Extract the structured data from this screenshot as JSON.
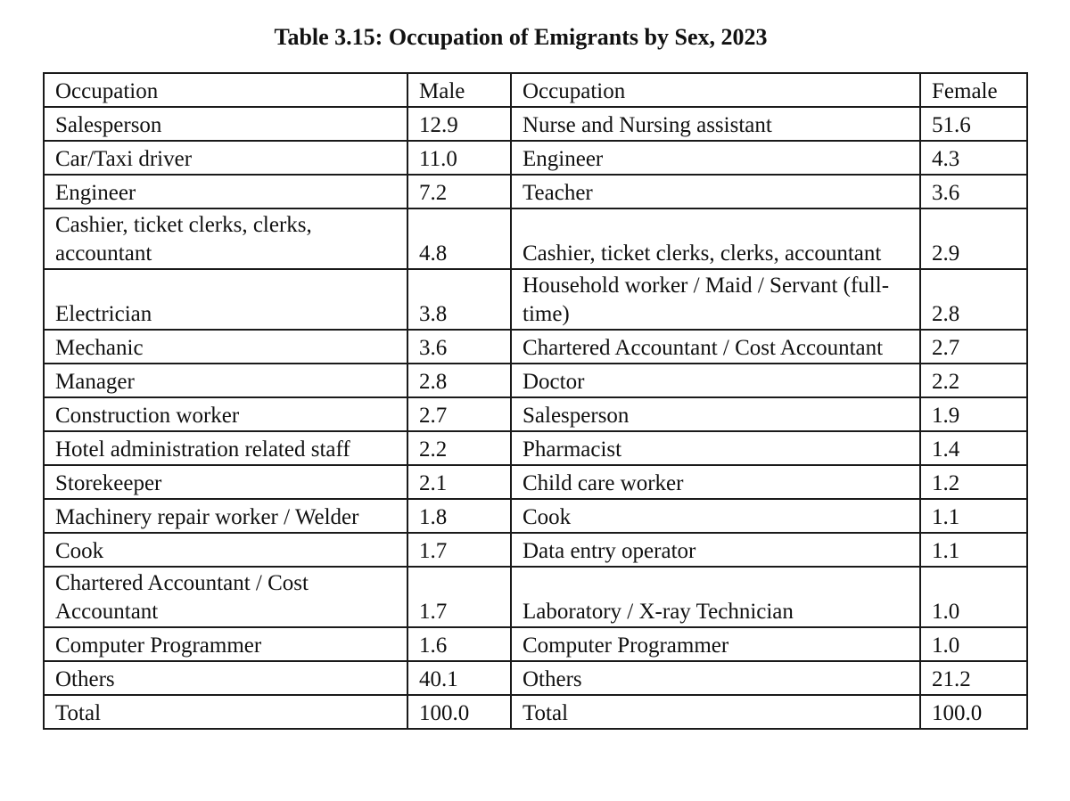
{
  "title": "Table 3.15: Occupation of Emigrants by Sex, 2023",
  "headers": {
    "occupation_male": "Occupation",
    "male": "Male",
    "occupation_female": "Occupation",
    "female": "Female"
  },
  "rows": [
    {
      "male_occ": "Salesperson",
      "male_val": "12.9",
      "female_occ": "Nurse and Nursing assistant",
      "female_val": "51.6"
    },
    {
      "male_occ": "Car/Taxi driver",
      "male_val": "11.0",
      "female_occ": "Engineer",
      "female_val": "4.3"
    },
    {
      "male_occ": "Engineer",
      "male_val": "7.2",
      "female_occ": "Teacher",
      "female_val": "3.6"
    },
    {
      "male_occ": "Cashier, ticket clerks, clerks, accountant",
      "male_val": "4.8",
      "female_occ": "Cashier, ticket clerks, clerks, accountant",
      "female_val": "2.9"
    },
    {
      "male_occ": "Electrician",
      "male_val": "3.8",
      "female_occ": "Household worker / Maid / Servant (full-time)",
      "female_val": "2.8"
    },
    {
      "male_occ": "Mechanic",
      "male_val": "3.6",
      "female_occ": "Chartered Accountant / Cost Accountant",
      "female_val": "2.7"
    },
    {
      "male_occ": "Manager",
      "male_val": "2.8",
      "female_occ": "Doctor",
      "female_val": "2.2"
    },
    {
      "male_occ": "Construction worker",
      "male_val": "2.7",
      "female_occ": "Salesperson",
      "female_val": "1.9"
    },
    {
      "male_occ": "Hotel administration related staff",
      "male_val": "2.2",
      "female_occ": "Pharmacist",
      "female_val": "1.4"
    },
    {
      "male_occ": "Storekeeper",
      "male_val": "2.1",
      "female_occ": "Child care worker",
      "female_val": "1.2"
    },
    {
      "male_occ": "Machinery repair worker / Welder",
      "male_val": "1.8",
      "female_occ": "Cook",
      "female_val": "1.1"
    },
    {
      "male_occ": "Cook",
      "male_val": "1.7",
      "female_occ": "Data entry operator",
      "female_val": "1.1"
    },
    {
      "male_occ": "Chartered Accountant / Cost Accountant",
      "male_val": "1.7",
      "female_occ": "Laboratory / X-ray Technician",
      "female_val": "1.0"
    },
    {
      "male_occ": "Computer Programmer",
      "male_val": "1.6",
      "female_occ": "Computer Programmer",
      "female_val": "1.0"
    },
    {
      "male_occ": "Others",
      "male_val": "40.1",
      "female_occ": "Others",
      "female_val": "21.2"
    },
    {
      "male_occ": "Total",
      "male_val": "100.0",
      "female_occ": "Total",
      "female_val": "100.0"
    }
  ]
}
